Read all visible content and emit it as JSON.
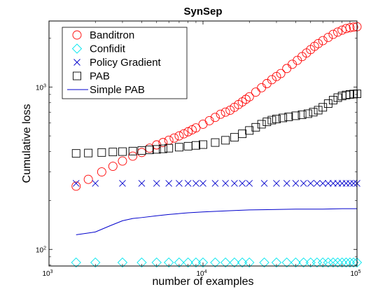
{
  "chart_data": {
    "type": "scatter",
    "title": "SynSep",
    "xlabel": "number of examples",
    "ylabel": "Cumulative loss",
    "xscale": "log",
    "yscale": "log",
    "xlim": [
      1000,
      100000
    ],
    "ylim": [
      79,
      2550
    ],
    "xticks": [
      1000,
      10000,
      100000
    ],
    "xtick_labels": [
      {
        "base": "10",
        "exp": "3"
      },
      {
        "base": "10",
        "exp": "4"
      },
      {
        "base": "10",
        "exp": "5"
      }
    ],
    "yticks": [
      100,
      1000
    ],
    "ytick_labels": [
      {
        "base": "10",
        "exp": "2"
      },
      {
        "base": "10",
        "exp": "3"
      }
    ],
    "grid": false,
    "legend_position": "top-left",
    "series": [
      {
        "name": "Banditron",
        "marker": "circle",
        "color": "#ff0000",
        "x": [
          1500,
          1800,
          2200,
          2600,
          3000,
          3500,
          4000,
          4500,
          5000,
          5500,
          6000,
          6500,
          7000,
          7500,
          8000,
          8500,
          9000,
          10000,
          11000,
          12000,
          13000,
          14000,
          15000,
          16000,
          17000,
          18000,
          19000,
          20000,
          22000,
          24000,
          26000,
          28000,
          30000,
          32000,
          35000,
          38000,
          41000,
          44000,
          47000,
          50000,
          53000,
          56000,
          60000,
          65000,
          70000,
          75000,
          80000,
          85000,
          90000,
          95000,
          100000
        ],
        "y": [
          245,
          270,
          300,
          325,
          350,
          375,
          395,
          420,
          440,
          455,
          470,
          485,
          500,
          515,
          530,
          545,
          560,
          590,
          620,
          650,
          680,
          700,
          720,
          750,
          780,
          810,
          840,
          870,
          930,
          990,
          1050,
          1110,
          1160,
          1210,
          1300,
          1380,
          1460,
          1540,
          1620,
          1700,
          1780,
          1850,
          1930,
          2020,
          2110,
          2180,
          2240,
          2290,
          2320,
          2340,
          2350
        ]
      },
      {
        "name": "Confidit",
        "marker": "diamond",
        "color": "#00e5ee",
        "x": [
          1500,
          2000,
          3000,
          4000,
          5000,
          6000,
          7000,
          8000,
          9000,
          10000,
          12000,
          14000,
          16000,
          18000,
          20000,
          25000,
          30000,
          35000,
          40000,
          45000,
          50000,
          55000,
          60000,
          65000,
          70000,
          75000,
          80000,
          85000,
          90000,
          95000,
          100000
        ],
        "y": [
          83,
          83,
          83,
          83,
          83,
          83,
          83,
          83,
          83,
          83,
          83,
          83,
          83,
          83,
          83,
          83,
          83,
          83,
          83,
          83,
          83,
          83,
          83,
          83,
          83,
          83,
          83,
          83,
          83,
          83,
          83
        ]
      },
      {
        "name": "Policy Gradient",
        "marker": "x",
        "color": "#0000cc",
        "x": [
          1500,
          2000,
          3000,
          4000,
          5000,
          6000,
          7000,
          8000,
          9000,
          10000,
          12000,
          14000,
          16000,
          18000,
          20000,
          25000,
          30000,
          35000,
          40000,
          45000,
          50000,
          55000,
          60000,
          65000,
          70000,
          75000,
          80000,
          85000,
          90000,
          95000,
          100000
        ],
        "y": [
          255,
          255,
          255,
          255,
          255,
          255,
          255,
          255,
          255,
          255,
          255,
          255,
          255,
          255,
          255,
          255,
          255,
          255,
          255,
          255,
          255,
          255,
          255,
          255,
          255,
          255,
          255,
          255,
          255,
          255,
          255
        ]
      },
      {
        "name": "PAB",
        "marker": "square",
        "color": "#000000",
        "x": [
          1500,
          1800,
          2200,
          2600,
          3000,
          3500,
          4000,
          4500,
          5000,
          5500,
          6000,
          7000,
          8000,
          9000,
          10000,
          12000,
          14000,
          16000,
          18000,
          20000,
          22000,
          24000,
          26000,
          28000,
          30000,
          33000,
          36000,
          40000,
          44000,
          48000,
          52000,
          56000,
          60000,
          65000,
          70000,
          75000,
          80000,
          85000,
          90000,
          95000,
          100000
        ],
        "y": [
          390,
          392,
          395,
          398,
          400,
          403,
          406,
          410,
          413,
          416,
          420,
          426,
          432,
          437,
          442,
          455,
          470,
          490,
          515,
          540,
          565,
          590,
          610,
          625,
          635,
          645,
          655,
          665,
          675,
          685,
          700,
          720,
          750,
          790,
          830,
          860,
          880,
          893,
          900,
          905,
          908
        ]
      },
      {
        "name": "Simple PAB",
        "marker": "line",
        "color": "#0000cc",
        "x": [
          1500,
          2000,
          2500,
          3000,
          3500,
          4000,
          5000,
          6000,
          8000,
          10000,
          15000,
          20000,
          30000,
          40000,
          60000,
          80000,
          100000
        ],
        "y": [
          123,
          128,
          140,
          150,
          155,
          157,
          161,
          164,
          168,
          170,
          173,
          175,
          176,
          177,
          177,
          178,
          178
        ]
      }
    ]
  }
}
